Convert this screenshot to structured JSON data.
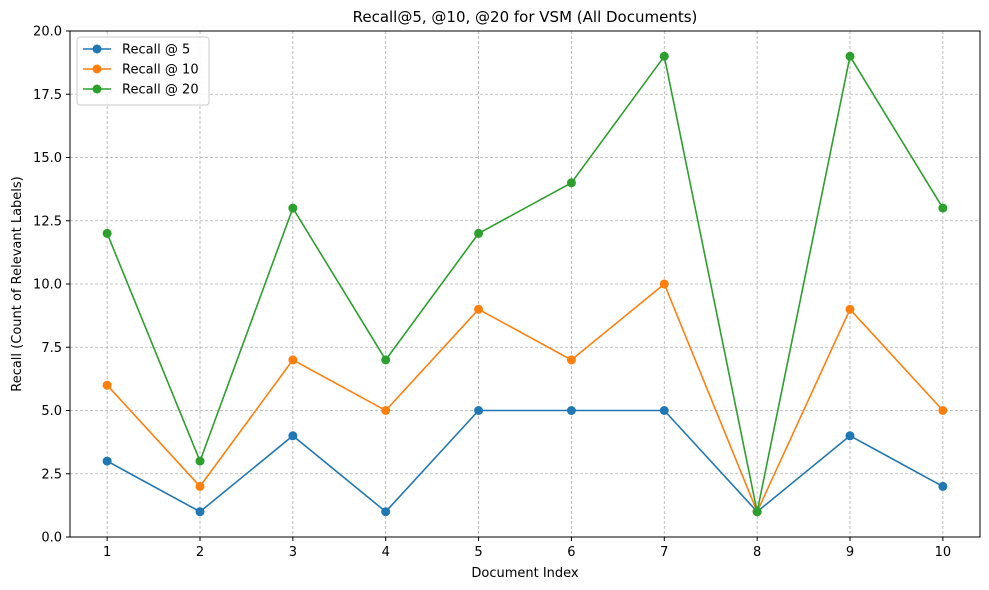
{
  "chart_data": {
    "type": "line",
    "title": "Recall@5, @10, @20 for VSM (All Documents)",
    "xlabel": "Document Index",
    "ylabel": "Recall (Count of Relevant Labels)",
    "x": [
      1,
      2,
      3,
      4,
      5,
      6,
      7,
      8,
      9,
      10
    ],
    "xlim": [
      0.6,
      10.4
    ],
    "ylim": [
      0,
      20
    ],
    "xticks": [
      "1",
      "2",
      "3",
      "4",
      "5",
      "6",
      "7",
      "8",
      "9",
      "10"
    ],
    "yticks": [
      "0.0",
      "2.5",
      "5.0",
      "7.5",
      "10.0",
      "12.5",
      "15.0",
      "17.5",
      "20.0"
    ],
    "grid": true,
    "legend_position": "top-left",
    "series": [
      {
        "name": "Recall @ 5",
        "color": "#1f77b4",
        "values": [
          3,
          1,
          4,
          1,
          5,
          5,
          5,
          1,
          4,
          2
        ]
      },
      {
        "name": "Recall @ 10",
        "color": "#ff7f0e",
        "values": [
          6,
          2,
          7,
          5,
          9,
          7,
          10,
          1,
          9,
          5
        ]
      },
      {
        "name": "Recall @ 20",
        "color": "#2ca02c",
        "values": [
          12,
          3,
          13,
          7,
          12,
          14,
          19,
          1,
          19,
          13
        ]
      }
    ]
  }
}
